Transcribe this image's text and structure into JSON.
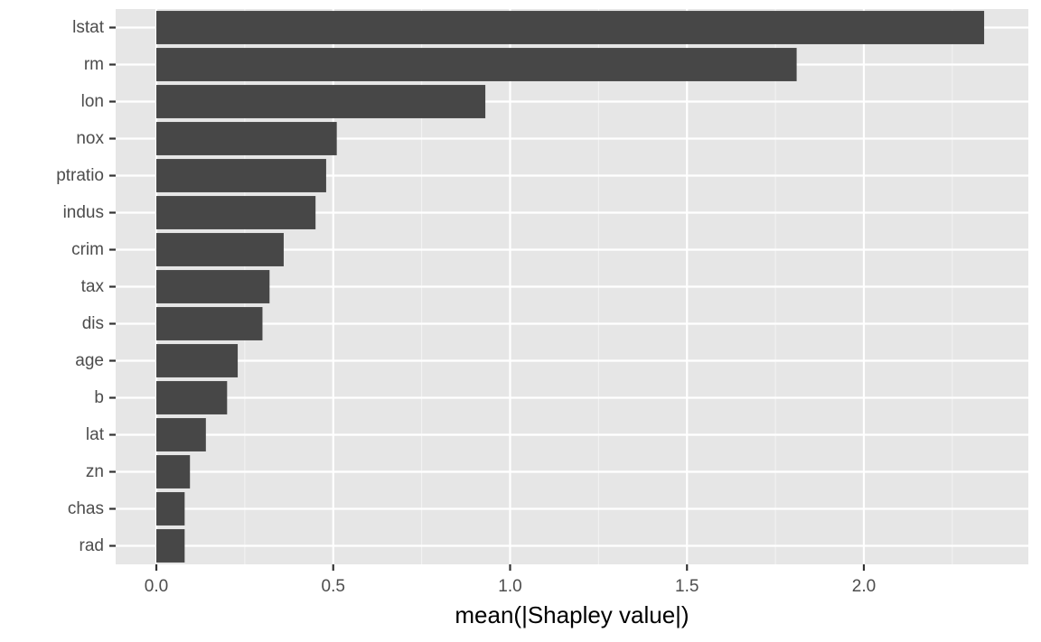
{
  "chart_data": {
    "type": "bar",
    "orientation": "horizontal",
    "categories": [
      "lstat",
      "rm",
      "lon",
      "nox",
      "ptratio",
      "indus",
      "crim",
      "tax",
      "dis",
      "age",
      "b",
      "lat",
      "zn",
      "chas",
      "rad"
    ],
    "values": [
      2.34,
      1.81,
      0.93,
      0.51,
      0.48,
      0.45,
      0.36,
      0.32,
      0.3,
      0.23,
      0.2,
      0.14,
      0.095,
      0.08,
      0.08
    ],
    "title": "",
    "xlabel": "mean(|Shapley value|)",
    "ylabel": "",
    "xlim": [
      -0.115,
      2.465
    ],
    "xticks": [
      0.0,
      0.5,
      1.0,
      1.5,
      2.0
    ],
    "xtick_labels": [
      "0.0",
      "0.5",
      "1.0",
      "1.5",
      "2.0"
    ],
    "grid": true,
    "legend": "none",
    "colors": {
      "bar": "#474747",
      "panel": "#e6e6e6",
      "grid_major": "#ffffff",
      "grid_minor": "#f2f2f2",
      "tick_text": "#4d4d4d",
      "axis_title": "#000000",
      "tick_mark": "#333333"
    }
  }
}
